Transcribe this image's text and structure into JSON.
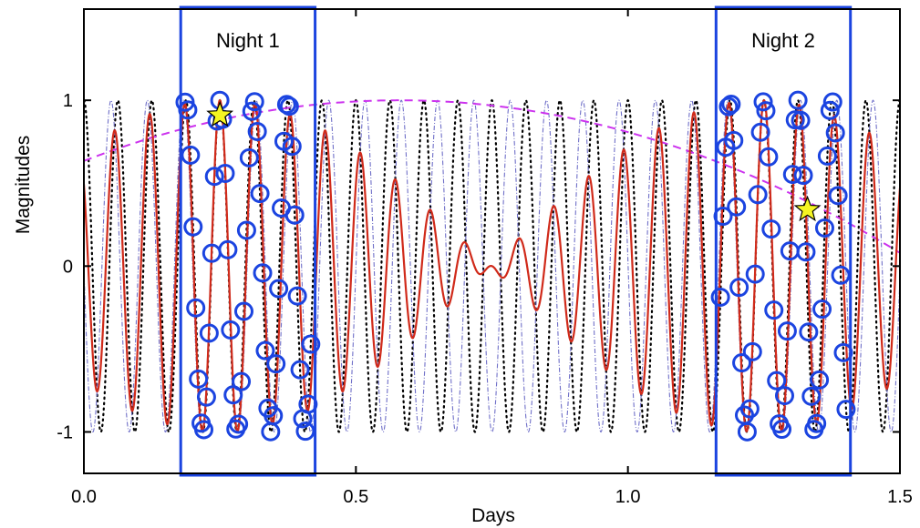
{
  "chart_data": {
    "type": "line",
    "title": "",
    "xlabel": "Days",
    "ylabel": "Magnitudes",
    "xlim": [
      0.0,
      1.5
    ],
    "ylim": [
      -1.25,
      1.55
    ],
    "x_ticks": [
      0.0,
      0.5,
      1.0,
      1.5
    ],
    "x_tick_labels": [
      "0.0",
      "0.5",
      "1.0",
      "1.5"
    ],
    "y_ticks": [
      -1,
      0,
      1
    ],
    "y_tick_labels": [
      "-1",
      "0",
      "1"
    ],
    "grid": false,
    "legend": "none",
    "series": [
      {
        "style": "dotted",
        "color": "#000000",
        "amplitude": 1.0,
        "period_days": 0.0625
      },
      {
        "style": "dash-dot",
        "color": "#6f6fc8",
        "amplitude": 1.0,
        "period_days": 0.0667
      },
      {
        "style": "solid",
        "color": "#d02a1a",
        "shape": "beat (average of the two sinusoids)"
      },
      {
        "style": "dashed",
        "color": "#cc33ee",
        "shape": "slow envelope",
        "peak_x": 0.58,
        "peak_y": 1.0,
        "y_at_x0": 0.67,
        "y_at_x1_5": 0.08
      }
    ],
    "observation_windows": [
      {
        "label": "Night 1",
        "x_start": 0.178,
        "x_end": 0.425
      },
      {
        "label": "Night 2",
        "x_start": 1.162,
        "x_end": 1.409
      }
    ],
    "observations": {
      "marker": "circle",
      "color": "#1b44e0",
      "samples_per_night": 48
    },
    "highlighted_points": [
      {
        "x": 0.25,
        "y": 0.91,
        "marker": "star",
        "color": "#f5f522"
      },
      {
        "x": 1.33,
        "y": 0.34,
        "marker": "star",
        "color": "#f5f522"
      }
    ],
    "colors": {
      "frame": "#000000",
      "window_box": "#1b44e0"
    }
  }
}
